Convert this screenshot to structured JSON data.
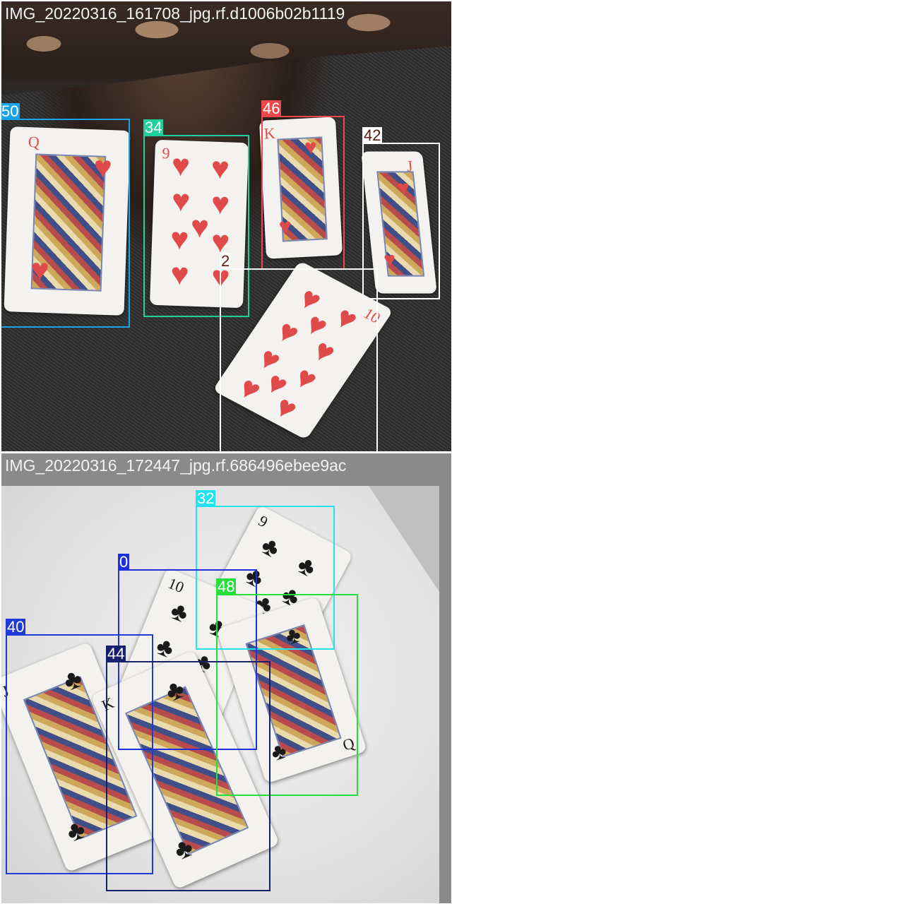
{
  "tiles": [
    {
      "title": "IMG_20220316_161708_jpg.rf.d1006b02b1119",
      "boxes": [
        {
          "label": "50",
          "color": "#1aa3e8"
        },
        {
          "label": "34",
          "color": "#21d19b"
        },
        {
          "label": "46",
          "color": "#f0474e"
        },
        {
          "label": "42",
          "color": "#ffffff"
        },
        {
          "label": "2",
          "color": "#ffffff"
        }
      ],
      "cards": [
        {
          "rank": "Q",
          "suit": "♥"
        },
        {
          "rank": "9",
          "suit": "♥"
        },
        {
          "rank": "K",
          "suit": "♥"
        },
        {
          "rank": "J",
          "suit": "♥"
        },
        {
          "rank": "10",
          "suit": "♥"
        }
      ]
    },
    {
      "title": "IMG_20220316_172447_jpg.rf.686496ebee9ac",
      "boxes": [
        {
          "label": "32",
          "color": "#1fe3ef"
        },
        {
          "label": "0",
          "color": "#1f2ee0"
        },
        {
          "label": "48",
          "color": "#25de3c"
        },
        {
          "label": "40",
          "color": "#1f3ad8"
        },
        {
          "label": "44",
          "color": "#16206e"
        }
      ],
      "cards": [
        {
          "rank": "9",
          "suit": "♣"
        },
        {
          "rank": "10",
          "suit": "♣"
        },
        {
          "rank": "Q",
          "suit": "♣"
        },
        {
          "rank": "J",
          "suit": "♣"
        },
        {
          "rank": "K",
          "suit": "♣"
        }
      ]
    }
  ]
}
